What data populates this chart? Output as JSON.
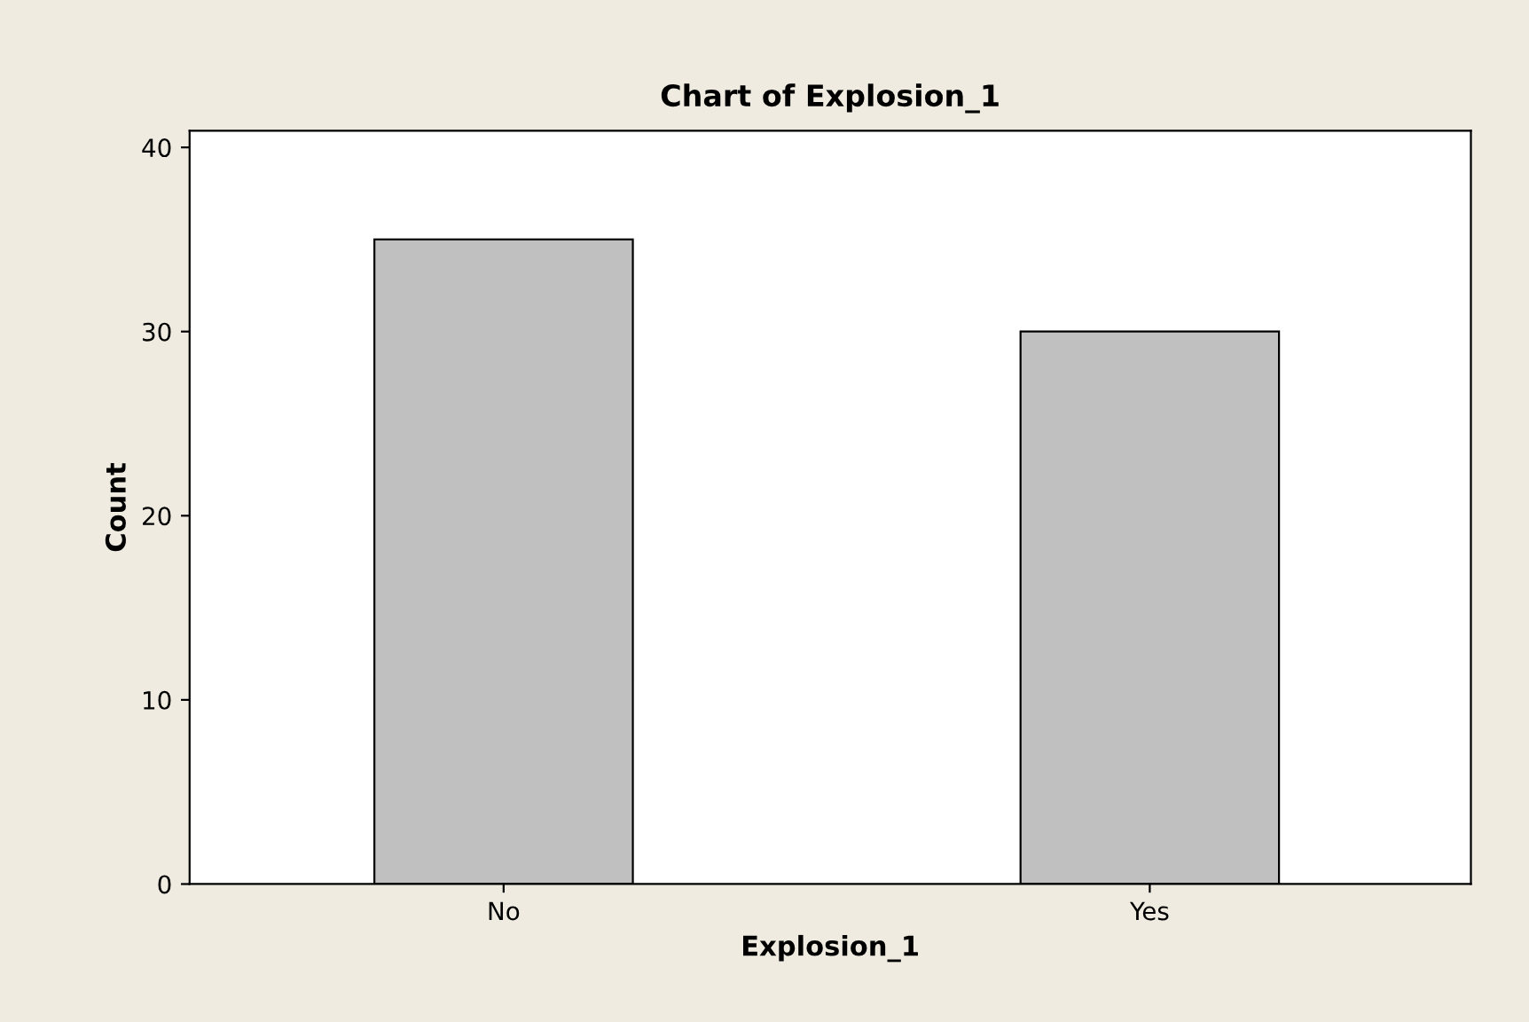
{
  "chart_data": {
    "type": "bar",
    "title": "Chart of Explosion_1",
    "xlabel": "Explosion_1",
    "ylabel": "Count",
    "categories": [
      "No",
      "Yes"
    ],
    "values": [
      35,
      30
    ],
    "color": "#c0c0c0",
    "ylim": [
      0,
      40.9
    ],
    "yticks": [
      0,
      10,
      20,
      30,
      40
    ],
    "grid": false,
    "legend": false
  }
}
